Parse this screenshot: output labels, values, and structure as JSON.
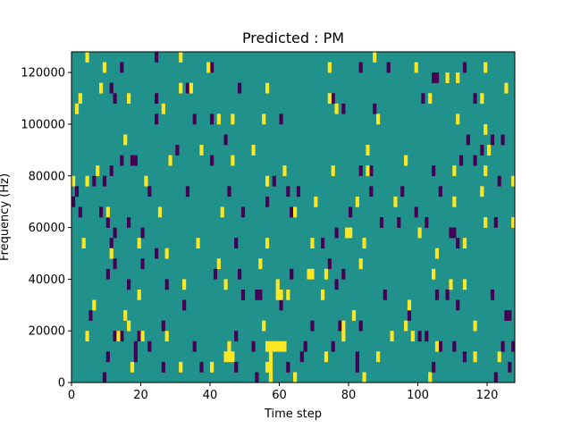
{
  "chart_data": {
    "type": "heatmap",
    "title": "Predicted : PM",
    "xlabel": "Time step",
    "ylabel": "Frequency (Hz)",
    "xlim": [
      0,
      128
    ],
    "ylim": [
      0,
      128000
    ],
    "xticks": [
      0,
      20,
      40,
      60,
      80,
      100,
      120
    ],
    "yticks": [
      0,
      20000,
      40000,
      60000,
      80000,
      100000,
      120000
    ],
    "xtick_labels": [
      "0",
      "20",
      "40",
      "60",
      "80",
      "100",
      "120"
    ],
    "ytick_labels": [
      "0",
      "20000",
      "40000",
      "60000",
      "80000",
      "100000",
      "120000"
    ],
    "grid": false,
    "legend": "none",
    "colormap": "viridis",
    "value_levels": [
      -1,
      0,
      1
    ],
    "colors": {
      "low": "#440154",
      "mid": "#21918c",
      "high": "#fde725"
    },
    "background_value": 0,
    "bin_width_hz": 4000,
    "high_cells": [
      [
        4,
        124000
      ],
      [
        9,
        120000
      ],
      [
        31,
        124000
      ],
      [
        39,
        120000
      ],
      [
        74,
        120000
      ],
      [
        87,
        124000
      ],
      [
        99,
        120000
      ],
      [
        108,
        116000
      ],
      [
        111,
        116000
      ],
      [
        119,
        120000
      ],
      [
        2,
        108000
      ],
      [
        8,
        112000
      ],
      [
        16,
        108000
      ],
      [
        31,
        112000
      ],
      [
        34,
        112000
      ],
      [
        56,
        112000
      ],
      [
        74,
        108000
      ],
      [
        103,
        108000
      ],
      [
        118,
        108000
      ],
      [
        125,
        112000
      ],
      [
        1,
        104000
      ],
      [
        26,
        104000
      ],
      [
        42,
        100000
      ],
      [
        46,
        100000
      ],
      [
        55,
        100000
      ],
      [
        88,
        100000
      ],
      [
        111,
        100000
      ],
      [
        119,
        96000
      ],
      [
        76,
        104000
      ],
      [
        15,
        92000
      ],
      [
        37,
        88000
      ],
      [
        52,
        88000
      ],
      [
        85,
        88000
      ],
      [
        120,
        88000
      ],
      [
        7,
        80000
      ],
      [
        28,
        84000
      ],
      [
        46,
        84000
      ],
      [
        61,
        80000
      ],
      [
        75,
        80000
      ],
      [
        85,
        80000
      ],
      [
        96,
        84000
      ],
      [
        110,
        80000
      ],
      [
        119,
        80000
      ],
      [
        0,
        76000
      ],
      [
        4,
        76000
      ],
      [
        21,
        76000
      ],
      [
        56,
        76000
      ],
      [
        70,
        68000
      ],
      [
        82,
        68000
      ],
      [
        93,
        68000
      ],
      [
        110,
        68000
      ],
      [
        118,
        72000
      ],
      [
        127,
        76000
      ],
      [
        10,
        64000
      ],
      [
        25,
        64000
      ],
      [
        43,
        64000
      ],
      [
        64,
        64000
      ],
      [
        79,
        56000
      ],
      [
        80,
        56000
      ],
      [
        100,
        56000
      ],
      [
        119,
        60000
      ],
      [
        3,
        52000
      ],
      [
        19,
        52000
      ],
      [
        36,
        52000
      ],
      [
        56,
        52000
      ],
      [
        69,
        52000
      ],
      [
        84,
        52000
      ],
      [
        105,
        48000
      ],
      [
        113,
        52000
      ],
      [
        127,
        60000
      ],
      [
        11,
        48000
      ],
      [
        27,
        48000
      ],
      [
        42,
        44000
      ],
      [
        54,
        44000
      ],
      [
        68,
        40000
      ],
      [
        69,
        40000
      ],
      [
        73,
        40000
      ],
      [
        83,
        44000
      ],
      [
        104,
        40000
      ],
      [
        109,
        36000
      ],
      [
        113,
        36000
      ],
      [
        6,
        28000
      ],
      [
        19,
        32000
      ],
      [
        32,
        36000
      ],
      [
        44,
        36000
      ],
      [
        59,
        36000
      ],
      [
        59,
        32000
      ],
      [
        60,
        32000
      ],
      [
        62,
        32000
      ],
      [
        72,
        32000
      ],
      [
        97,
        28000
      ],
      [
        4,
        16000
      ],
      [
        15,
        24000
      ],
      [
        20,
        16000
      ],
      [
        27,
        16000
      ],
      [
        55,
        20000
      ],
      [
        78,
        20000
      ],
      [
        81,
        24000
      ],
      [
        96,
        20000
      ],
      [
        98,
        16000
      ],
      [
        116,
        20000
      ],
      [
        13,
        16000
      ],
      [
        16,
        20000
      ],
      [
        78,
        16000
      ],
      [
        92,
        16000
      ],
      [
        44,
        8000
      ],
      [
        45,
        8000
      ],
      [
        46,
        8000
      ],
      [
        45,
        12000
      ],
      [
        56,
        12000
      ],
      [
        57,
        12000
      ],
      [
        58,
        12000
      ],
      [
        59,
        12000
      ],
      [
        60,
        12000
      ],
      [
        61,
        12000
      ],
      [
        57,
        8000
      ],
      [
        56,
        4000
      ],
      [
        57,
        4000
      ],
      [
        57,
        0
      ],
      [
        73,
        8000
      ],
      [
        88,
        8000
      ],
      [
        105,
        12000
      ],
      [
        116,
        8000
      ],
      [
        123,
        8000
      ],
      [
        17,
        4000
      ],
      [
        31,
        4000
      ],
      [
        40,
        4000
      ],
      [
        64,
        0
      ],
      [
        84,
        0
      ],
      [
        103,
        0
      ]
    ],
    "low_cells": [
      [
        14,
        120000
      ],
      [
        24,
        124000
      ],
      [
        40,
        120000
      ],
      [
        83,
        120000
      ],
      [
        91,
        120000
      ],
      [
        104,
        116000
      ],
      [
        105,
        116000
      ],
      [
        113,
        120000
      ],
      [
        11,
        112000
      ],
      [
        24,
        108000
      ],
      [
        33,
        112000
      ],
      [
        48,
        112000
      ],
      [
        75,
        108000
      ],
      [
        116,
        108000
      ],
      [
        12,
        108000
      ],
      [
        24,
        100000
      ],
      [
        35,
        100000
      ],
      [
        40,
        100000
      ],
      [
        60,
        100000
      ],
      [
        78,
        104000
      ],
      [
        87,
        104000
      ],
      [
        101,
        108000
      ],
      [
        44,
        92000
      ],
      [
        114,
        92000
      ],
      [
        121,
        92000
      ],
      [
        124,
        92000
      ],
      [
        118,
        88000
      ],
      [
        6,
        76000
      ],
      [
        11,
        80000
      ],
      [
        14,
        84000
      ],
      [
        17,
        84000
      ],
      [
        18,
        84000
      ],
      [
        30,
        88000
      ],
      [
        40,
        84000
      ],
      [
        83,
        80000
      ],
      [
        86,
        80000
      ],
      [
        104,
        80000
      ],
      [
        112,
        84000
      ],
      [
        116,
        84000
      ],
      [
        1,
        72000
      ],
      [
        9,
        76000
      ],
      [
        22,
        72000
      ],
      [
        33,
        72000
      ],
      [
        45,
        72000
      ],
      [
        58,
        76000
      ],
      [
        62,
        72000
      ],
      [
        65,
        72000
      ],
      [
        86,
        72000
      ],
      [
        95,
        72000
      ],
      [
        106,
        72000
      ],
      [
        123,
        76000
      ],
      [
        2,
        64000
      ],
      [
        8,
        64000
      ],
      [
        10,
        60000
      ],
      [
        12,
        56000
      ],
      [
        16,
        60000
      ],
      [
        49,
        64000
      ],
      [
        56,
        68000
      ],
      [
        63,
        64000
      ],
      [
        80,
        64000
      ],
      [
        89,
        60000
      ],
      [
        99,
        64000
      ],
      [
        109,
        56000
      ],
      [
        122,
        60000
      ],
      [
        0,
        68000
      ],
      [
        11,
        52000
      ],
      [
        20,
        56000
      ],
      [
        47,
        52000
      ],
      [
        72,
        52000
      ],
      [
        76,
        56000
      ],
      [
        94,
        60000
      ],
      [
        110,
        56000
      ],
      [
        111,
        52000
      ],
      [
        102,
        60000
      ],
      [
        12,
        44000
      ],
      [
        20,
        44000
      ],
      [
        24,
        48000
      ],
      [
        41,
        40000
      ],
      [
        48,
        40000
      ],
      [
        63,
        40000
      ],
      [
        74,
        44000
      ],
      [
        78,
        40000
      ],
      [
        90,
        32000
      ],
      [
        105,
        32000
      ],
      [
        111,
        28000
      ],
      [
        10,
        40000
      ],
      [
        16,
        36000
      ],
      [
        27,
        36000
      ],
      [
        32,
        28000
      ],
      [
        49,
        32000
      ],
      [
        53,
        32000
      ],
      [
        54,
        32000
      ],
      [
        60,
        28000
      ],
      [
        76,
        36000
      ],
      [
        97,
        24000
      ],
      [
        108,
        32000
      ],
      [
        121,
        32000
      ],
      [
        125,
        24000
      ],
      [
        126,
        24000
      ],
      [
        5,
        24000
      ],
      [
        12,
        16000
      ],
      [
        13,
        16000
      ],
      [
        18,
        12000
      ],
      [
        26,
        20000
      ],
      [
        35,
        12000
      ],
      [
        47,
        16000
      ],
      [
        52,
        12000
      ],
      [
        69,
        20000
      ],
      [
        77,
        20000
      ],
      [
        78,
        20000
      ],
      [
        83,
        20000
      ],
      [
        102,
        16000
      ],
      [
        106,
        12000
      ],
      [
        10,
        8000
      ],
      [
        14,
        16000
      ],
      [
        19,
        16000
      ],
      [
        22,
        12000
      ],
      [
        37,
        4000
      ],
      [
        47,
        4000
      ],
      [
        62,
        4000
      ],
      [
        67,
        12000
      ],
      [
        75,
        12000
      ],
      [
        82,
        8000
      ],
      [
        100,
        16000
      ],
      [
        110,
        12000
      ],
      [
        124,
        12000
      ],
      [
        127,
        12000
      ],
      [
        9,
        0
      ],
      [
        18,
        8000
      ],
      [
        26,
        4000
      ],
      [
        53,
        0
      ],
      [
        66,
        8000
      ],
      [
        82,
        4000
      ],
      [
        104,
        4000
      ],
      [
        113,
        8000
      ],
      [
        122,
        0
      ],
      [
        126,
        4000
      ]
    ]
  }
}
